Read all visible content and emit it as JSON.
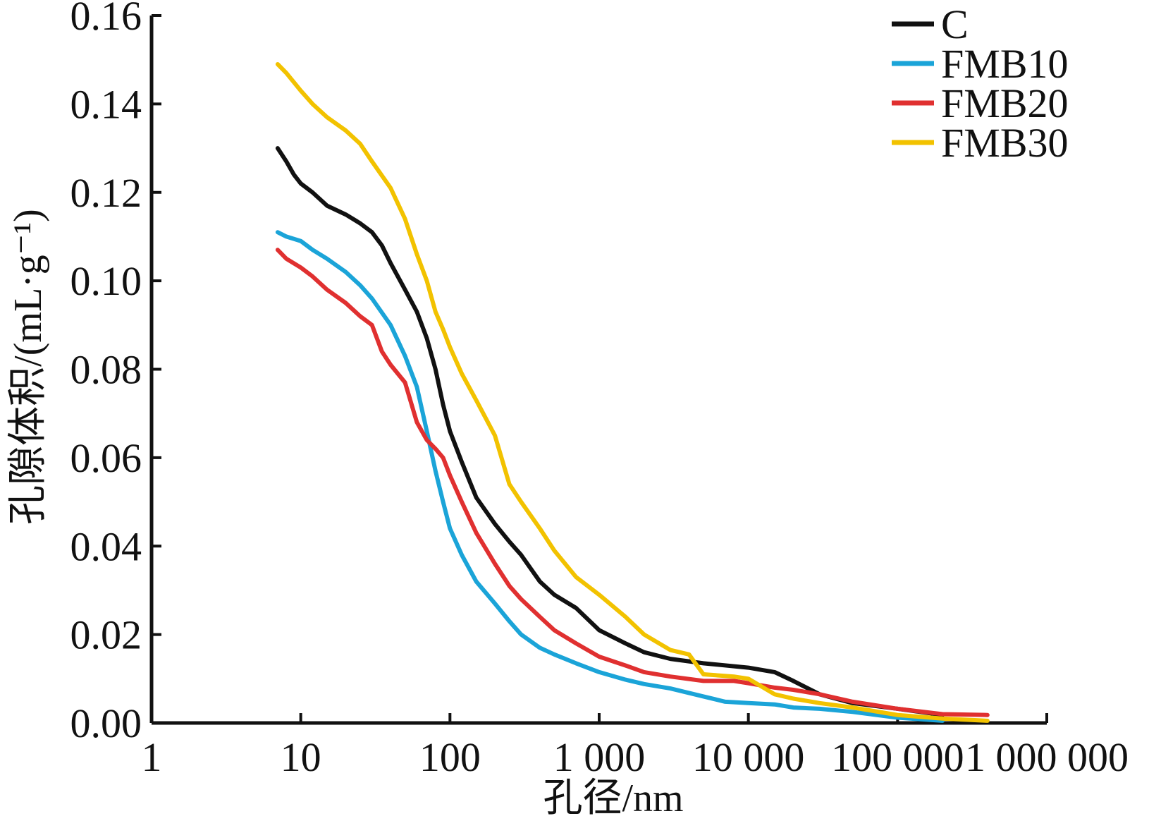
{
  "chart_data": {
    "type": "line",
    "xlabel": "孔径/nm",
    "ylabel": "孔隙体积/(mL·g⁻¹)",
    "x_scale": "log",
    "xlim": [
      1,
      1000000
    ],
    "ylim": [
      0,
      0.16
    ],
    "x_ticks": [
      1,
      10,
      100,
      1000,
      10000,
      100000,
      1000000
    ],
    "x_tick_labels": [
      "1",
      "10",
      "100",
      "1 000",
      "10 000",
      "100 000",
      "1 000 000"
    ],
    "y_ticks": [
      0,
      0.02,
      0.04,
      0.06,
      0.08,
      0.1,
      0.12,
      0.14,
      0.16
    ],
    "y_tick_labels": [
      "0.00",
      "0.02",
      "0.04",
      "0.06",
      "0.08",
      "0.10",
      "0.12",
      "0.14",
      "0.16"
    ],
    "legend_position": "top-right",
    "grid": false,
    "series": [
      {
        "name": "C",
        "color": "#111111",
        "points": [
          [
            7,
            0.13
          ],
          [
            8,
            0.127
          ],
          [
            9,
            0.124
          ],
          [
            10,
            0.122
          ],
          [
            12,
            0.12
          ],
          [
            15,
            0.117
          ],
          [
            20,
            0.115
          ],
          [
            25,
            0.113
          ],
          [
            30,
            0.111
          ],
          [
            35,
            0.108
          ],
          [
            40,
            0.104
          ],
          [
            50,
            0.098
          ],
          [
            60,
            0.093
          ],
          [
            70,
            0.087
          ],
          [
            80,
            0.08
          ],
          [
            90,
            0.072
          ],
          [
            100,
            0.066
          ],
          [
            120,
            0.059
          ],
          [
            150,
            0.051
          ],
          [
            200,
            0.045
          ],
          [
            250,
            0.041
          ],
          [
            300,
            0.038
          ],
          [
            400,
            0.032
          ],
          [
            500,
            0.029
          ],
          [
            700,
            0.026
          ],
          [
            1000,
            0.021
          ],
          [
            1500,
            0.018
          ],
          [
            2000,
            0.016
          ],
          [
            3000,
            0.0145
          ],
          [
            5000,
            0.0135
          ],
          [
            10000,
            0.0125
          ],
          [
            15000,
            0.0115
          ],
          [
            20000,
            0.0095
          ],
          [
            30000,
            0.0065
          ],
          [
            50000,
            0.0045
          ],
          [
            100000,
            0.0032
          ],
          [
            200000,
            0.0018
          ]
        ]
      },
      {
        "name": "FMB10",
        "color": "#1ba4d8",
        "points": [
          [
            7,
            0.111
          ],
          [
            8,
            0.11
          ],
          [
            10,
            0.109
          ],
          [
            12,
            0.107
          ],
          [
            15,
            0.105
          ],
          [
            20,
            0.102
          ],
          [
            25,
            0.099
          ],
          [
            30,
            0.096
          ],
          [
            40,
            0.09
          ],
          [
            50,
            0.083
          ],
          [
            60,
            0.076
          ],
          [
            70,
            0.066
          ],
          [
            80,
            0.057
          ],
          [
            90,
            0.05
          ],
          [
            100,
            0.044
          ],
          [
            120,
            0.038
          ],
          [
            150,
            0.032
          ],
          [
            200,
            0.027
          ],
          [
            250,
            0.023
          ],
          [
            300,
            0.02
          ],
          [
            400,
            0.017
          ],
          [
            500,
            0.0155
          ],
          [
            700,
            0.0135
          ],
          [
            1000,
            0.0115
          ],
          [
            1500,
            0.0098
          ],
          [
            2000,
            0.0088
          ],
          [
            3000,
            0.0078
          ],
          [
            5000,
            0.006
          ],
          [
            7000,
            0.0048
          ],
          [
            10000,
            0.0045
          ],
          [
            15000,
            0.0042
          ],
          [
            20000,
            0.0035
          ],
          [
            30000,
            0.0032
          ],
          [
            50000,
            0.0025
          ],
          [
            100000,
            0.0012
          ],
          [
            200000,
            0.0005
          ]
        ]
      },
      {
        "name": "FMB20",
        "color": "#e03030",
        "points": [
          [
            7,
            0.107
          ],
          [
            8,
            0.105
          ],
          [
            10,
            0.103
          ],
          [
            12,
            0.101
          ],
          [
            15,
            0.098
          ],
          [
            20,
            0.095
          ],
          [
            25,
            0.092
          ],
          [
            30,
            0.09
          ],
          [
            35,
            0.084
          ],
          [
            40,
            0.081
          ],
          [
            50,
            0.077
          ],
          [
            60,
            0.068
          ],
          [
            70,
            0.064
          ],
          [
            80,
            0.062
          ],
          [
            90,
            0.06
          ],
          [
            100,
            0.056
          ],
          [
            120,
            0.05
          ],
          [
            150,
            0.043
          ],
          [
            200,
            0.036
          ],
          [
            250,
            0.031
          ],
          [
            300,
            0.028
          ],
          [
            400,
            0.024
          ],
          [
            500,
            0.021
          ],
          [
            700,
            0.018
          ],
          [
            1000,
            0.015
          ],
          [
            1500,
            0.013
          ],
          [
            2000,
            0.0115
          ],
          [
            3000,
            0.0105
          ],
          [
            5000,
            0.0095
          ],
          [
            8000,
            0.0095
          ],
          [
            10000,
            0.009
          ],
          [
            15000,
            0.008
          ],
          [
            20000,
            0.0075
          ],
          [
            30000,
            0.0065
          ],
          [
            50000,
            0.0048
          ],
          [
            100000,
            0.0032
          ],
          [
            200000,
            0.002
          ],
          [
            400000,
            0.0018
          ]
        ]
      },
      {
        "name": "FMB30",
        "color": "#f2c200",
        "points": [
          [
            7,
            0.149
          ],
          [
            8,
            0.147
          ],
          [
            10,
            0.143
          ],
          [
            12,
            0.14
          ],
          [
            15,
            0.137
          ],
          [
            20,
            0.134
          ],
          [
            25,
            0.131
          ],
          [
            30,
            0.127
          ],
          [
            40,
            0.121
          ],
          [
            50,
            0.114
          ],
          [
            60,
            0.106
          ],
          [
            70,
            0.1
          ],
          [
            80,
            0.093
          ],
          [
            90,
            0.089
          ],
          [
            100,
            0.085
          ],
          [
            120,
            0.079
          ],
          [
            150,
            0.073
          ],
          [
            200,
            0.065
          ],
          [
            250,
            0.054
          ],
          [
            300,
            0.05
          ],
          [
            400,
            0.044
          ],
          [
            500,
            0.039
          ],
          [
            700,
            0.033
          ],
          [
            1000,
            0.029
          ],
          [
            1500,
            0.024
          ],
          [
            2000,
            0.02
          ],
          [
            3000,
            0.0165
          ],
          [
            4000,
            0.0155
          ],
          [
            5000,
            0.011
          ],
          [
            8000,
            0.0105
          ],
          [
            10000,
            0.01
          ],
          [
            15000,
            0.0065
          ],
          [
            20000,
            0.0055
          ],
          [
            30000,
            0.0045
          ],
          [
            50000,
            0.0035
          ],
          [
            100000,
            0.0018
          ],
          [
            200000,
            0.001
          ],
          [
            400000,
            0.0005
          ]
        ]
      }
    ]
  }
}
